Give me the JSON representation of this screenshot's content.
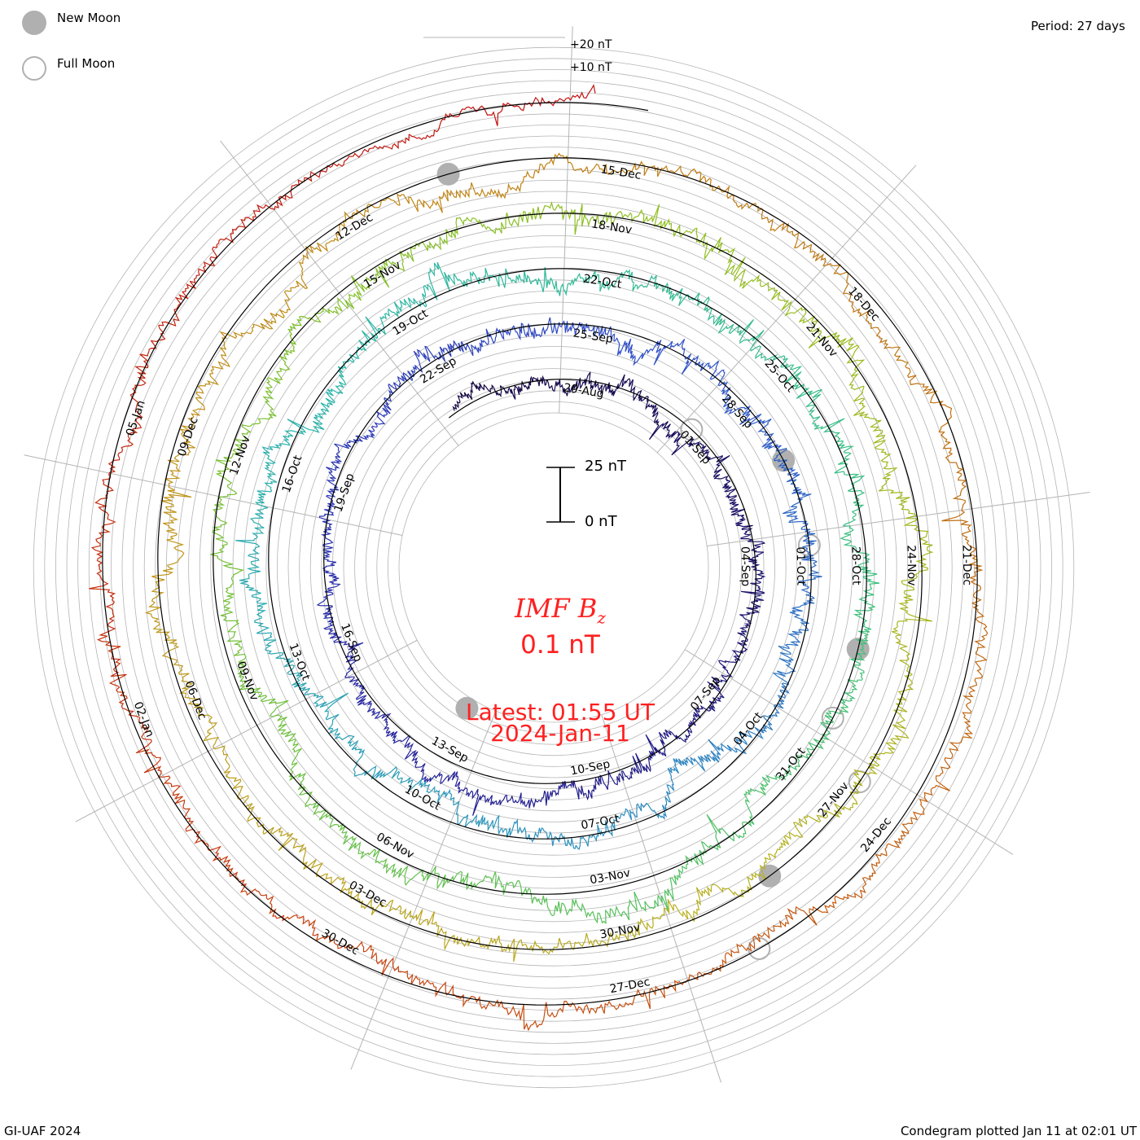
{
  "legend": {
    "new_moon_label": "New Moon",
    "full_moon_label": "Full Moon"
  },
  "period_label": "Period: 27 days",
  "scale_labels": {
    "plus20": "+20 nT",
    "plus10": "+10 nT"
  },
  "scale_bar": {
    "top_label": "25 nT",
    "bottom_label": "0 nT"
  },
  "center": {
    "title_main": "IMF B",
    "title_sub": "z",
    "value": "0.1 nT",
    "latest": "Latest: 01:55 UT",
    "date": "2024-Jan-11"
  },
  "footer": {
    "left": "GI-UAF 2024",
    "right": "Condegram plotted Jan 11 at 02:01 UT"
  },
  "colors": {
    "palette": [
      "#14063f",
      "#1c1470",
      "#2a2aa8",
      "#3050c8",
      "#2e8fc0",
      "#2ab5a8",
      "#3cc080",
      "#6cc040",
      "#90c020",
      "#b8b020",
      "#c09018",
      "#c07010",
      "#c84010",
      "#c01010"
    ],
    "spiral": "#000000",
    "grid": "#b4b4b4",
    "moon": "#b0b0b0",
    "center_text": "#ff2020"
  },
  "chart_data": {
    "type": "condegram-spiral",
    "title": "IMF Bz",
    "period_days": 27,
    "units": "nT",
    "start_label_date": "29-Aug",
    "end": "2024-Jan-11 01:55 UT",
    "latest_value": 0.1,
    "date_labels": [
      [
        "29-Aug",
        "01-Sep",
        "04-Sep",
        "07-Sep",
        "10-Sep",
        "13-Sep",
        "16-Sep",
        "19-Sep",
        "22-Sep"
      ],
      [
        "25-Sep",
        "28-Sep",
        "01-Oct",
        "04-Oct",
        "07-Oct",
        "10-Oct",
        "13-Oct",
        "16-Oct",
        "19-Oct"
      ],
      [
        "22-Oct",
        "25-Oct",
        "28-Oct",
        "31-Oct",
        "03-Nov",
        "06-Nov",
        "09-Nov",
        "12-Nov",
        "15-Nov"
      ],
      [
        "18-Nov",
        "21-Nov",
        "24-Nov",
        "27-Nov",
        "30-Nov",
        "03-Dec",
        "06-Dec",
        "09-Dec",
        "12-Dec"
      ],
      [
        "15-Dec",
        "18-Dec",
        "21-Dec",
        "24-Dec",
        "27-Dec",
        "30-Dec",
        "02-Jan",
        "05-Jan"
      ]
    ],
    "new_moon_days": [
      -11.5,
      31.5,
      61.5,
      91.5,
      106.5
    ],
    "full_moon_days": [
      3,
      33,
      62.5,
      90,
      119
    ],
    "ring_noise_nT": [
      4,
      5,
      5,
      5,
      4,
      3
    ]
  }
}
